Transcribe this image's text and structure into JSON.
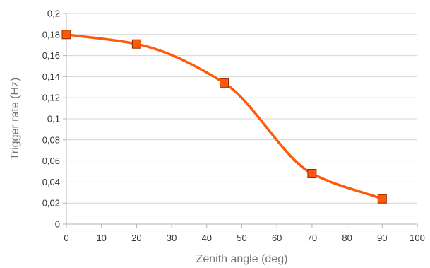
{
  "chart_data": {
    "type": "line",
    "title": "",
    "xlabel": "Zenith angle (deg)",
    "ylabel": "Trigger rate (Hz)",
    "xlim": [
      0,
      100
    ],
    "ylim": [
      0,
      0.2
    ],
    "x_ticks": [
      0,
      10,
      20,
      30,
      40,
      50,
      60,
      70,
      80,
      90,
      100
    ],
    "x_tick_labels": [
      "0",
      "10",
      "20",
      "30",
      "40",
      "50",
      "60",
      "70",
      "80",
      "90",
      "100"
    ],
    "y_ticks": [
      0,
      0.02,
      0.04,
      0.06,
      0.08,
      0.1,
      0.12,
      0.14,
      0.16,
      0.18,
      0.2
    ],
    "y_tick_labels": [
      "0",
      "0,02",
      "0,04",
      "0,06",
      "0,08",
      "0,1",
      "0,12",
      "0,14",
      "0,16",
      "0,18",
      "0,2"
    ],
    "grid": "horizontal",
    "smooth": true,
    "series": [
      {
        "x": [
          0,
          20,
          45,
          70,
          90
        ],
        "y": [
          0.18,
          0.171,
          0.134,
          0.048,
          0.024
        ],
        "color": "#ff5a0a",
        "marker": "square",
        "marker_fill": "#ff5a0a",
        "marker_stroke": "#8a2a00"
      }
    ]
  }
}
